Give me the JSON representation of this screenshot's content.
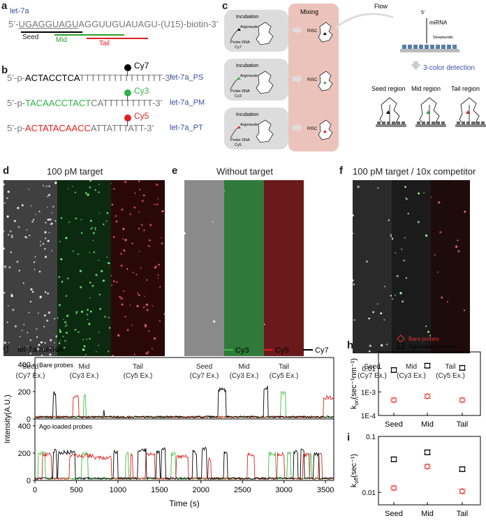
{
  "a": {
    "label": "a",
    "title": "let-7a",
    "seq_prefix": "5’-",
    "seq_seed": "UGAGGUAGU",
    "seq_rest": "AGGUUGUAUAGU-(U15)-biotin-3’",
    "seed": "Seed",
    "mid": "Mid",
    "tail": "Tail",
    "colors": {
      "seed": "#000000",
      "mid": "#2ca02c",
      "tail": "#e02020"
    }
  },
  "b": {
    "label": "b",
    "probes": [
      {
        "prefix": "5’-p-",
        "colored": "ACTACCTCA",
        "rest": "TTTTTTTTTTTTTTT-3’",
        "dye": "Cy7",
        "name": "let-7a_PS",
        "color": "#000000"
      },
      {
        "prefix": "5’-p-",
        "colored": "TACAACCTACT",
        "rest": "CATTTTTTTTT-3’",
        "dye": "Cy3",
        "name": "let-7a_PM",
        "color": "#2fb24a"
      },
      {
        "prefix": "5’-p-",
        "colored": "ACTATACAACC",
        "rest": "ATTATTTATT-3’",
        "dye": "Cy5",
        "name": "let-7a_PT",
        "color": "#e02020"
      }
    ]
  },
  "c": {
    "label": "c",
    "incubation": "Incubation",
    "argonaute": "Argonaute",
    "probe_dna": "Probe DNA",
    "dyes": [
      "Cy7",
      "Cy3",
      "Cy5"
    ],
    "risc": "RISC",
    "mixing": "Mixing",
    "flow": "Flow",
    "five_prime": "5’",
    "mirna": "miRNA",
    "streptavidin": "Streptavidin",
    "detection": "3-color detection",
    "regions": [
      "Seed region",
      "Mid region",
      "Tail region"
    ]
  },
  "d": {
    "label": "d",
    "title": "100 pM target"
  },
  "e": {
    "label": "e",
    "title": "Without target"
  },
  "f": {
    "label": "f",
    "title": "100 pM target / 10x competitor"
  },
  "channels": [
    {
      "name": "Seed",
      "ex": "(Cy7 Ex.)"
    },
    {
      "name": "Mid",
      "ex": "(Cy3 Ex.)"
    },
    {
      "name": "Tail",
      "ex": "(Cy5 Ex.)"
    }
  ],
  "g": {
    "label": "g",
    "title": "let-7a miRNA",
    "ylabel": "Intensity(A.U.)",
    "xlabel": "Time (s)",
    "sub1": "Bare probes",
    "sub2": "Ago-loaded probes",
    "legend": [
      {
        "name": "Cy3",
        "color": "#3fbf3f"
      },
      {
        "name": "Cy5",
        "color": "#e02020"
      },
      {
        "name": "Cy7",
        "color": "#000000"
      }
    ],
    "yticks": [
      "0",
      "200",
      "400"
    ],
    "xticks": [
      "0",
      "500",
      "1000",
      "1500",
      "2000",
      "2500",
      "3000",
      "3500"
    ]
  },
  "h": {
    "label": "h",
    "legend_bare": "Bare probes",
    "legend_ago": "Ago-loaded probes",
    "ylabel": "k",
    "ylabel_sub": "on",
    "ylabel_unit": "(sec⁻¹nm⁻¹)",
    "yticks": [
      "0.01",
      "1E-3",
      "1E-4"
    ]
  },
  "i": {
    "label": "i",
    "ylabel": "k",
    "ylabel_sub": "off",
    "ylabel_unit": "(sec⁻¹)",
    "yticks": [
      "0.1",
      "0.01"
    ]
  },
  "chart_data": [
    {
      "type": "line",
      "title": "let-7a miRNA",
      "xlabel": "Time (s)",
      "ylabel": "Intensity(A.U.)",
      "xlim": [
        0,
        3600
      ],
      "ylim": [
        0,
        450
      ],
      "panels": [
        "Bare probes",
        "Ago-loaded probes"
      ],
      "series": [
        {
          "name": "Cy3"
        },
        {
          "name": "Cy5"
        },
        {
          "name": "Cy7"
        }
      ]
    },
    {
      "type": "scatter",
      "categories": [
        "Seed",
        "Mid",
        "Tail"
      ],
      "ylabel": "kon(sec-1nm-1)",
      "yscale": "log",
      "ylim": [
        0.0001,
        0.05
      ],
      "series": [
        {
          "name": "Bare probes",
          "values": [
            0.00045,
            0.00065,
            0.00045
          ],
          "marker": "diamond",
          "color": "#e0352b"
        },
        {
          "name": "Ago-loaded probes",
          "values": [
            0.0085,
            0.013,
            0.0105
          ],
          "marker": "square",
          "color": "#000000"
        }
      ]
    },
    {
      "type": "scatter",
      "categories": [
        "Seed",
        "Mid",
        "Tail"
      ],
      "ylabel": "koff(sec-1)",
      "yscale": "log",
      "ylim": [
        0.006,
        0.1
      ],
      "series": [
        {
          "name": "Bare probes",
          "values": [
            0.012,
            0.029,
            0.0105
          ],
          "marker": "diamond",
          "color": "#e0352b"
        },
        {
          "name": "Ago-loaded probes",
          "values": [
            0.039,
            0.052,
            0.026
          ],
          "marker": "square",
          "color": "#000000"
        }
      ]
    }
  ]
}
